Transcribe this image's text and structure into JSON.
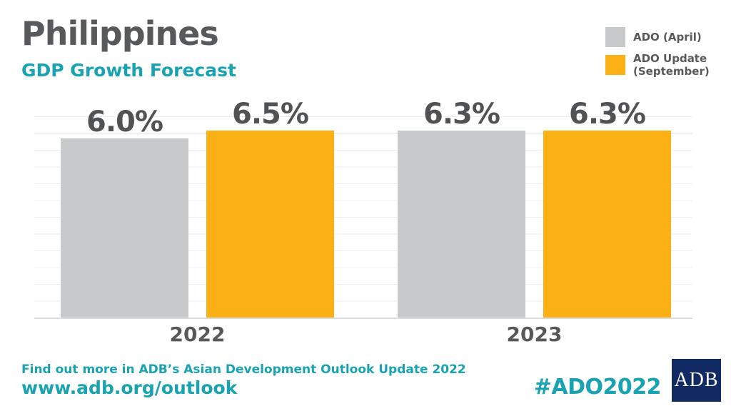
{
  "header": {
    "title": "Philippines",
    "subtitle": "GDP Growth Forecast"
  },
  "legend": {
    "row1": "ADO (April)",
    "row2_line1": "ADO Update",
    "row2_line2": "(September)"
  },
  "chart_data": {
    "type": "bar",
    "title": "Philippines GDP Growth Forecast",
    "categories": [
      "2022",
      "2023"
    ],
    "series": [
      {
        "name": "ADO (April)",
        "values": [
          6.0,
          6.3
        ],
        "color": "#C7C9CB"
      },
      {
        "name": "ADO Update (September)",
        "values": [
          6.5,
          6.3
        ],
        "color": "#FBB116"
      }
    ],
    "unit": "%",
    "ylim": [
      0,
      7
    ],
    "grid": true,
    "legend_position": "top-right",
    "bars": [
      {
        "series": "ADO (April)",
        "category": "2022",
        "value": 6.0,
        "label": "6.0%"
      },
      {
        "series": "ADO Update (September)",
        "category": "2022",
        "value": 6.5,
        "label": "6.5%"
      },
      {
        "series": "ADO (April)",
        "category": "2023",
        "value": 6.3,
        "label": "6.3%"
      },
      {
        "series": "ADO Update (September)",
        "category": "2023",
        "value": 6.3,
        "label": "6.3%"
      }
    ]
  },
  "footer": {
    "line1": "Find out more in ADB’s Asian Development Outlook Update 2022",
    "url": "www.adb.org/outlook",
    "hashtag": "#ADO2022",
    "logo_text": "ADB"
  },
  "colors": {
    "accent_teal": "#19A3B2",
    "bar_gray": "#C7C9CB",
    "bar_orange": "#FBB116",
    "text_dark": "#58595B",
    "logo_navy": "#112A64"
  }
}
